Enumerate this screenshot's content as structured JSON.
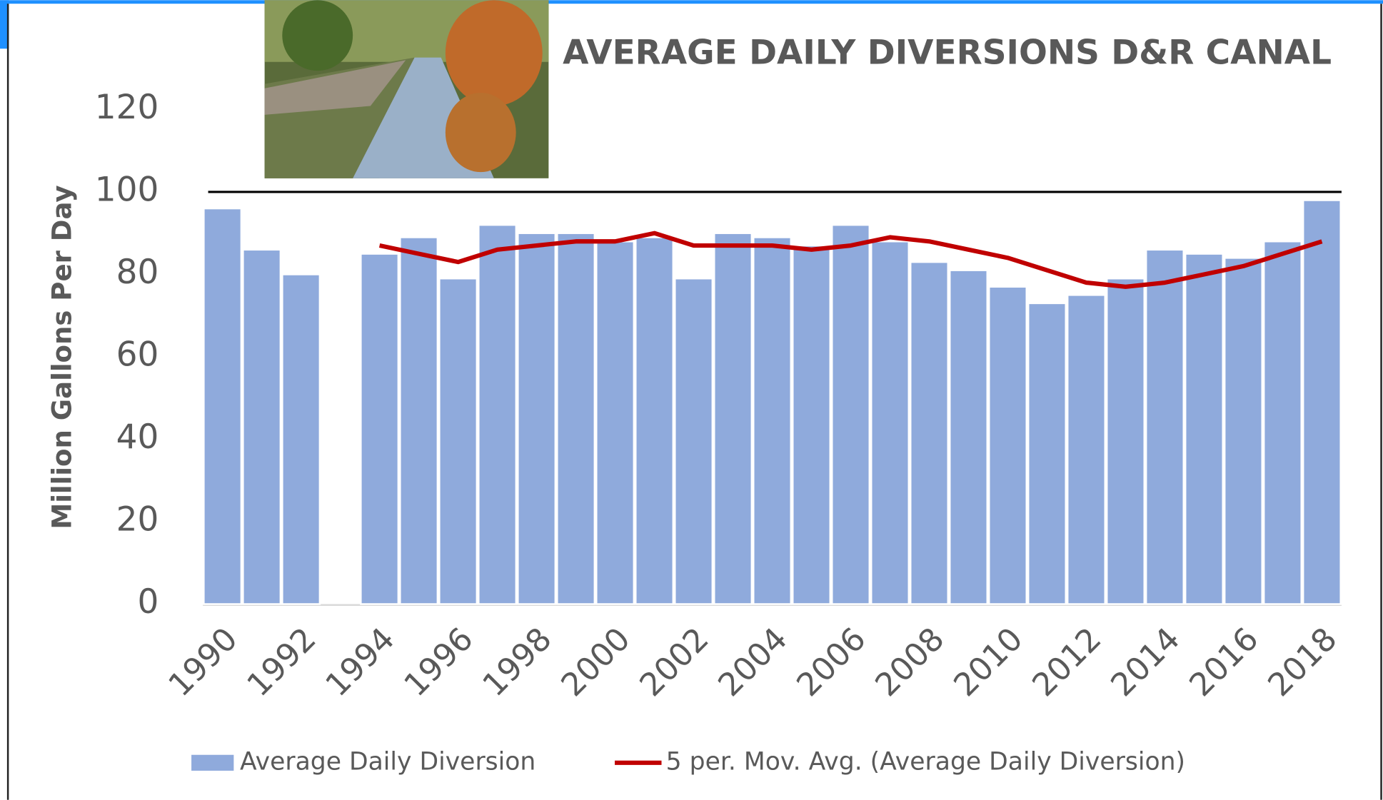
{
  "chart_data": {
    "type": "bar",
    "title": "AVERAGE DAILY DIVERSIONS D&R CANAL",
    "y_label": "Million Gallons Per Day",
    "categories": [
      1990,
      null,
      1992,
      null,
      1994,
      null,
      1996,
      null,
      1998,
      null,
      2000,
      null,
      2002,
      null,
      2004,
      null,
      2006,
      null,
      2008,
      null,
      2010,
      null,
      2012,
      null,
      2014,
      null,
      2016,
      null,
      2018
    ],
    "series": [
      {
        "name": "Average Daily Diversion",
        "type": "bar",
        "color": "#8faadc",
        "values": [
          96,
          86,
          80,
          null,
          85,
          89,
          79,
          92,
          90,
          90,
          88,
          89,
          79,
          90,
          89,
          87,
          92,
          88,
          83,
          81,
          77,
          73,
          75,
          79,
          86,
          85,
          84,
          88,
          98
        ]
      },
      {
        "name": "5 per. Mov. Avg. (Average Daily Diversion)",
        "type": "line",
        "color": "#c00000",
        "values": [
          null,
          null,
          null,
          null,
          87,
          85,
          83,
          86,
          87,
          88,
          88,
          90,
          87,
          87,
          87,
          86,
          87,
          89,
          88,
          86,
          84,
          81,
          78,
          77,
          78,
          80,
          82,
          85,
          88
        ]
      }
    ],
    "ylim": [
      0,
      120
    ],
    "yticks": [
      0,
      20,
      40,
      60,
      80,
      100,
      120
    ],
    "reference_line": 100,
    "legend": "bottom"
  }
}
